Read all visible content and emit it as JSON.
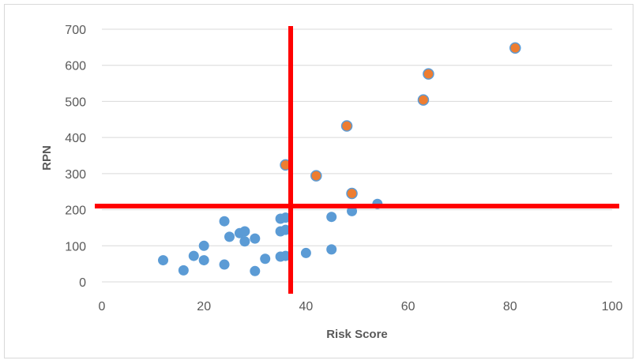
{
  "chart_data": {
    "type": "scatter",
    "title": "",
    "xlabel": "Risk Score",
    "ylabel": "RPN",
    "xlim": [
      0,
      100
    ],
    "ylim": [
      0,
      700
    ],
    "x_ticks": [
      0,
      20,
      40,
      60,
      80,
      100
    ],
    "y_ticks": [
      0,
      100,
      200,
      300,
      400,
      500,
      600,
      700
    ],
    "grid": "horizontal",
    "legend": "none",
    "threshold_lines": {
      "x": 37,
      "y": 210,
      "color": "#ff0000"
    },
    "series": [
      {
        "color": "#5b9bd5",
        "points": [
          [
            12,
            60
          ],
          [
            16,
            32
          ],
          [
            18,
            72
          ],
          [
            20,
            100
          ],
          [
            20,
            60
          ],
          [
            24,
            168
          ],
          [
            24,
            48
          ],
          [
            25,
            125
          ],
          [
            27,
            135
          ],
          [
            28,
            140
          ],
          [
            28,
            112
          ],
          [
            30,
            120
          ],
          [
            30,
            30
          ],
          [
            32,
            64
          ],
          [
            35,
            175
          ],
          [
            35,
            140
          ],
          [
            35,
            70
          ],
          [
            36,
            178
          ],
          [
            36,
            144
          ],
          [
            36,
            72
          ],
          [
            40,
            80
          ],
          [
            45,
            180
          ],
          [
            45,
            90
          ],
          [
            49,
            196
          ],
          [
            54,
            216
          ]
        ]
      },
      {
        "color": "#ed7d31",
        "stroke": "#5b9bd5",
        "points": [
          [
            36,
            324
          ],
          [
            42,
            294
          ],
          [
            48,
            432
          ],
          [
            49,
            245
          ],
          [
            63,
            504
          ],
          [
            64,
            576
          ],
          [
            81,
            648
          ]
        ]
      }
    ]
  }
}
